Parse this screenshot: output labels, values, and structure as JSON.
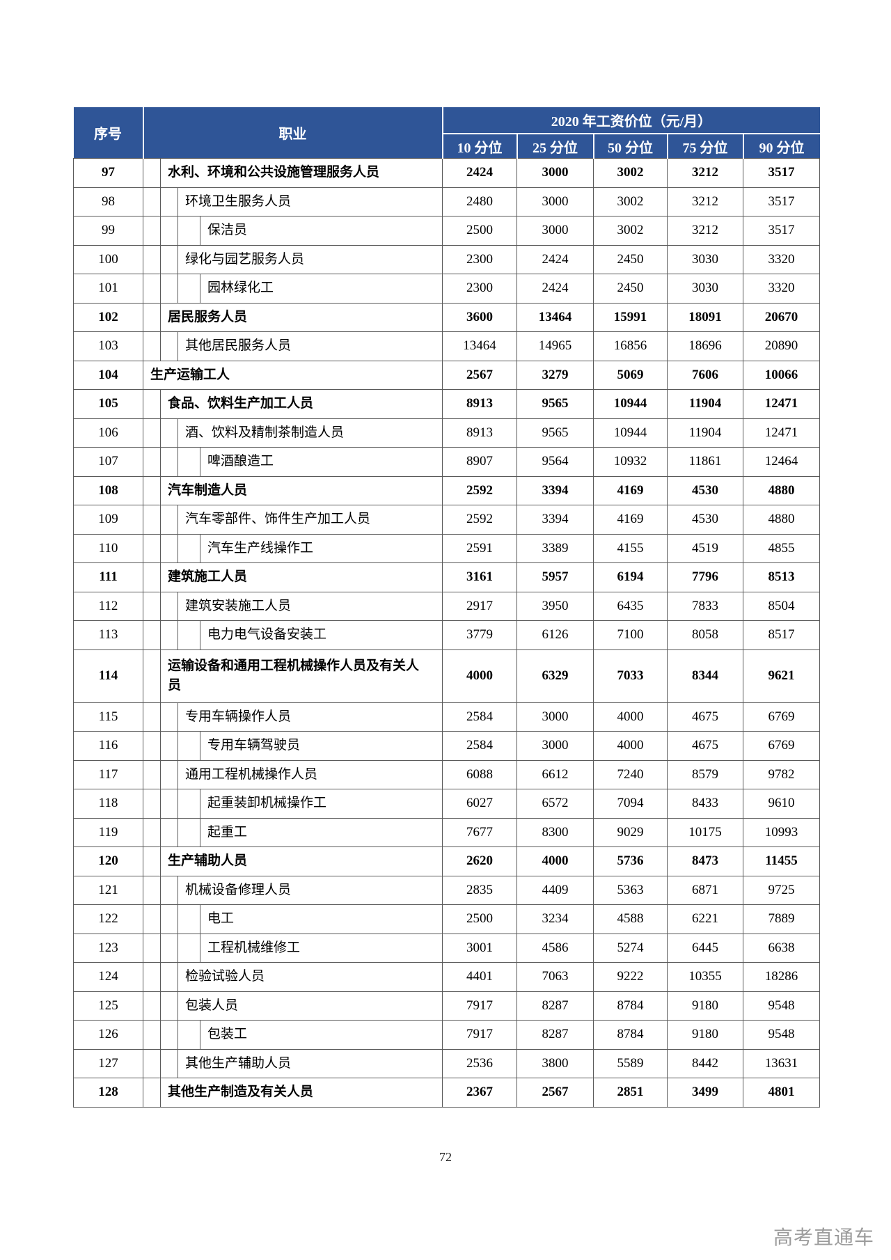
{
  "page": {
    "number": "72",
    "watermark": "高考直通车"
  },
  "colors": {
    "header_bg": "#2F5597",
    "header_text": "#FFFFFF",
    "grid_border": "#595959",
    "watermark_text": "#9B9B9B"
  },
  "table": {
    "header": {
      "seq": "序号",
      "occupation": "职业",
      "group": "2020 年工资价位（元/月）",
      "percentiles": [
        "10 分位",
        "25 分位",
        "50 分位",
        "75 分位",
        "90 分位"
      ]
    },
    "rows": [
      {
        "no": "97",
        "occupation": "水利、环境和公共设施管理服务人员",
        "level": 1,
        "bold": true,
        "values": [
          "2424",
          "3000",
          "3002",
          "3212",
          "3517"
        ]
      },
      {
        "no": "98",
        "occupation": "环境卫生服务人员",
        "level": 2,
        "bold": false,
        "values": [
          "2480",
          "3000",
          "3002",
          "3212",
          "3517"
        ]
      },
      {
        "no": "99",
        "occupation": "保洁员",
        "level": 3,
        "bold": false,
        "values": [
          "2500",
          "3000",
          "3002",
          "3212",
          "3517"
        ]
      },
      {
        "no": "100",
        "occupation": "绿化与园艺服务人员",
        "level": 2,
        "bold": false,
        "values": [
          "2300",
          "2424",
          "2450",
          "3030",
          "3320"
        ]
      },
      {
        "no": "101",
        "occupation": "园林绿化工",
        "level": 3,
        "bold": false,
        "values": [
          "2300",
          "2424",
          "2450",
          "3030",
          "3320"
        ]
      },
      {
        "no": "102",
        "occupation": "居民服务人员",
        "level": 1,
        "bold": true,
        "values": [
          "3600",
          "13464",
          "15991",
          "18091",
          "20670"
        ]
      },
      {
        "no": "103",
        "occupation": "其他居民服务人员",
        "level": 2,
        "bold": false,
        "values": [
          "13464",
          "14965",
          "16856",
          "18696",
          "20890"
        ]
      },
      {
        "no": "104",
        "occupation": "生产运输工人",
        "level": 0,
        "bold": true,
        "values": [
          "2567",
          "3279",
          "5069",
          "7606",
          "10066"
        ]
      },
      {
        "no": "105",
        "occupation": "食品、饮料生产加工人员",
        "level": 1,
        "bold": true,
        "values": [
          "8913",
          "9565",
          "10944",
          "11904",
          "12471"
        ]
      },
      {
        "no": "106",
        "occupation": "酒、饮料及精制茶制造人员",
        "level": 2,
        "bold": false,
        "values": [
          "8913",
          "9565",
          "10944",
          "11904",
          "12471"
        ]
      },
      {
        "no": "107",
        "occupation": "啤酒酿造工",
        "level": 3,
        "bold": false,
        "values": [
          "8907",
          "9564",
          "10932",
          "11861",
          "12464"
        ]
      },
      {
        "no": "108",
        "occupation": "汽车制造人员",
        "level": 1,
        "bold": true,
        "values": [
          "2592",
          "3394",
          "4169",
          "4530",
          "4880"
        ]
      },
      {
        "no": "109",
        "occupation": "汽车零部件、饰件生产加工人员",
        "level": 2,
        "bold": false,
        "values": [
          "2592",
          "3394",
          "4169",
          "4530",
          "4880"
        ]
      },
      {
        "no": "110",
        "occupation": "汽车生产线操作工",
        "level": 3,
        "bold": false,
        "values": [
          "2591",
          "3389",
          "4155",
          "4519",
          "4855"
        ]
      },
      {
        "no": "111",
        "occupation": "建筑施工人员",
        "level": 1,
        "bold": true,
        "values": [
          "3161",
          "5957",
          "6194",
          "7796",
          "8513"
        ]
      },
      {
        "no": "112",
        "occupation": "建筑安装施工人员",
        "level": 2,
        "bold": false,
        "values": [
          "2917",
          "3950",
          "6435",
          "7833",
          "8504"
        ]
      },
      {
        "no": "113",
        "occupation": "电力电气设备安装工",
        "level": 3,
        "bold": false,
        "values": [
          "3779",
          "6126",
          "7100",
          "8058",
          "8517"
        ]
      },
      {
        "no": "114",
        "occupation": "运输设备和通用工程机械操作人员及有关人员",
        "level": 1,
        "bold": true,
        "tall": true,
        "values": [
          "4000",
          "6329",
          "7033",
          "8344",
          "9621"
        ]
      },
      {
        "no": "115",
        "occupation": "专用车辆操作人员",
        "level": 2,
        "bold": false,
        "values": [
          "2584",
          "3000",
          "4000",
          "4675",
          "6769"
        ]
      },
      {
        "no": "116",
        "occupation": "专用车辆驾驶员",
        "level": 3,
        "bold": false,
        "values": [
          "2584",
          "3000",
          "4000",
          "4675",
          "6769"
        ]
      },
      {
        "no": "117",
        "occupation": "通用工程机械操作人员",
        "level": 2,
        "bold": false,
        "values": [
          "6088",
          "6612",
          "7240",
          "8579",
          "9782"
        ]
      },
      {
        "no": "118",
        "occupation": "起重装卸机械操作工",
        "level": 3,
        "bold": false,
        "values": [
          "6027",
          "6572",
          "7094",
          "8433",
          "9610"
        ]
      },
      {
        "no": "119",
        "occupation": "起重工",
        "level": 3,
        "bold": false,
        "values": [
          "7677",
          "8300",
          "9029",
          "10175",
          "10993"
        ]
      },
      {
        "no": "120",
        "occupation": "生产辅助人员",
        "level": 1,
        "bold": true,
        "values": [
          "2620",
          "4000",
          "5736",
          "8473",
          "11455"
        ]
      },
      {
        "no": "121",
        "occupation": "机械设备修理人员",
        "level": 2,
        "bold": false,
        "values": [
          "2835",
          "4409",
          "5363",
          "6871",
          "9725"
        ]
      },
      {
        "no": "122",
        "occupation": "电工",
        "level": 3,
        "bold": false,
        "values": [
          "2500",
          "3234",
          "4588",
          "6221",
          "7889"
        ]
      },
      {
        "no": "123",
        "occupation": "工程机械维修工",
        "level": 3,
        "bold": false,
        "values": [
          "3001",
          "4586",
          "5274",
          "6445",
          "6638"
        ]
      },
      {
        "no": "124",
        "occupation": "检验试验人员",
        "level": 2,
        "bold": false,
        "values": [
          "4401",
          "7063",
          "9222",
          "10355",
          "18286"
        ]
      },
      {
        "no": "125",
        "occupation": "包装人员",
        "level": 2,
        "bold": false,
        "values": [
          "7917",
          "8287",
          "8784",
          "9180",
          "9548"
        ]
      },
      {
        "no": "126",
        "occupation": "包装工",
        "level": 3,
        "bold": false,
        "values": [
          "7917",
          "8287",
          "8784",
          "9180",
          "9548"
        ]
      },
      {
        "no": "127",
        "occupation": "其他生产辅助人员",
        "level": 2,
        "bold": false,
        "values": [
          "2536",
          "3800",
          "5589",
          "8442",
          "13631"
        ]
      },
      {
        "no": "128",
        "occupation": "其他生产制造及有关人员",
        "level": 1,
        "bold": true,
        "values": [
          "2367",
          "2567",
          "2851",
          "3499",
          "4801"
        ]
      }
    ]
  }
}
